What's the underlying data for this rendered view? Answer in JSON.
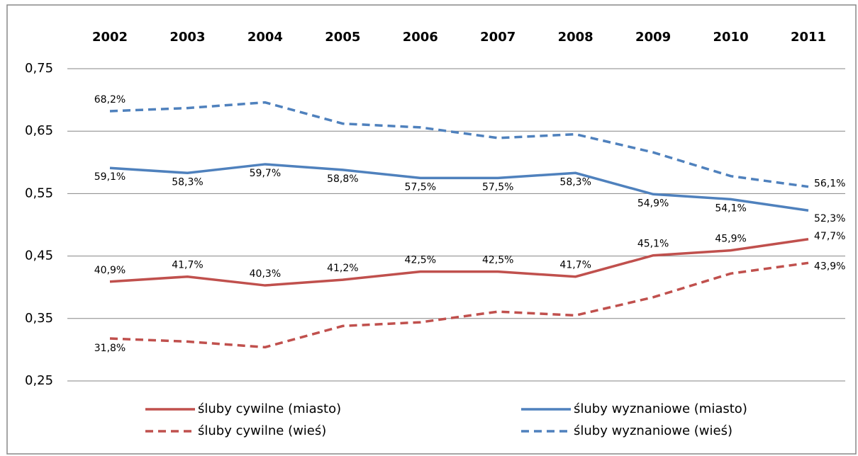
{
  "chart_data": {
    "type": "line",
    "categories": [
      "2002",
      "2003",
      "2004",
      "2005",
      "2006",
      "2007",
      "2008",
      "2009",
      "2010",
      "2011"
    ],
    "ylim": [
      0.25,
      0.75
    ],
    "yticks": [
      {
        "value": 0.25,
        "label": "0,25"
      },
      {
        "value": 0.35,
        "label": "0,35"
      },
      {
        "value": 0.45,
        "label": "0,45"
      },
      {
        "value": 0.55,
        "label": "0,55"
      },
      {
        "value": 0.65,
        "label": "0,65"
      },
      {
        "value": 0.75,
        "label": "0,75"
      }
    ],
    "grid": true,
    "legend": "bottom",
    "series": [
      {
        "name": "śluby cywilne (miasto)",
        "color": "#c0504d",
        "dash": false,
        "values": [
          0.409,
          0.417,
          0.403,
          0.412,
          0.425,
          0.425,
          0.417,
          0.451,
          0.459,
          0.477
        ],
        "value_labels": [
          "40,9%",
          "41,7%",
          "40,3%",
          "41,2%",
          "42,5%",
          "42,5%",
          "41,7%",
          "45,1%",
          "45,9%",
          "47,7%"
        ]
      },
      {
        "name": "śluby wyznaniowe (miasto)",
        "color": "#4f81bd",
        "dash": false,
        "values": [
          0.591,
          0.583,
          0.597,
          0.588,
          0.575,
          0.575,
          0.583,
          0.549,
          0.541,
          0.523
        ],
        "value_labels": [
          "59,1%",
          "58,3%",
          "59,7%",
          "58,8%",
          "57,5%",
          "57,5%",
          "58,3%",
          "54,9%",
          "54,1%",
          "52,3%"
        ]
      },
      {
        "name": "śluby cywilne (wieś)",
        "color": "#c0504d",
        "dash": true,
        "values": [
          0.318,
          0.313,
          0.304,
          0.338,
          0.344,
          0.361,
          0.355,
          0.384,
          0.422,
          0.439
        ],
        "value_labels": [
          "31,8%",
          null,
          null,
          null,
          null,
          null,
          null,
          null,
          null,
          "43,9%"
        ]
      },
      {
        "name": "śluby wyznaniowe (wieś)",
        "color": "#4f81bd",
        "dash": true,
        "values": [
          0.682,
          0.687,
          0.696,
          0.662,
          0.656,
          0.639,
          0.645,
          0.616,
          0.578,
          0.561
        ],
        "value_labels": [
          "68,2%",
          null,
          null,
          null,
          null,
          null,
          null,
          null,
          null,
          "56,1%"
        ]
      }
    ]
  }
}
